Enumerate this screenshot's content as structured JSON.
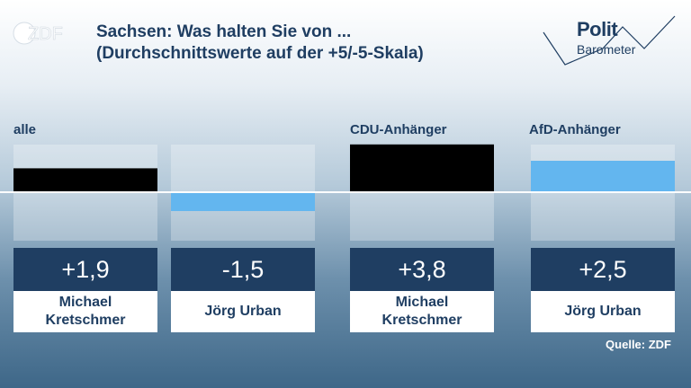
{
  "header": {
    "logo": "ZDF",
    "title_line1": "Sachsen: Was halten Sie von ...",
    "title_line2": "(Durchschnittswerte auf der +5/-5-Skala)",
    "brand_line1": "Polit",
    "brand_line2": "Barometer",
    "brand_icon": "politbarometer-logo"
  },
  "groups": [
    {
      "label": "alle"
    },
    {
      "label": "CDU-Anhänger"
    },
    {
      "label": "AfD-Anhänger"
    }
  ],
  "source": "Quelle: ZDF",
  "colors": {
    "positive": "#000000",
    "negative": "#63b6ef",
    "afd": "#63b6ef",
    "dark_blue": "#1f3e62"
  },
  "chart_data": {
    "type": "bar",
    "ylim": [
      -5,
      5
    ],
    "items": [
      {
        "group": "alle",
        "name": "Michael Kretschmer",
        "name_line1": "Michael",
        "name_line2": "Kretschmer",
        "value": 1.9,
        "label": "+1,9",
        "color": "#000000"
      },
      {
        "group": "alle",
        "name": "Jörg Urban",
        "name_line1": "Jörg Urban",
        "name_line2": "",
        "value": -1.5,
        "label": "-1,5",
        "color": "#63b6ef"
      },
      {
        "group": "CDU-Anhänger",
        "name": "Michael Kretschmer",
        "name_line1": "Michael",
        "name_line2": "Kretschmer",
        "value": 3.8,
        "label": "+3,8",
        "color": "#000000"
      },
      {
        "group": "AfD-Anhänger",
        "name": "Jörg Urban",
        "name_line1": "Jörg Urban",
        "name_line2": "",
        "value": 2.5,
        "label": "+2,5",
        "color": "#63b6ef"
      }
    ]
  }
}
